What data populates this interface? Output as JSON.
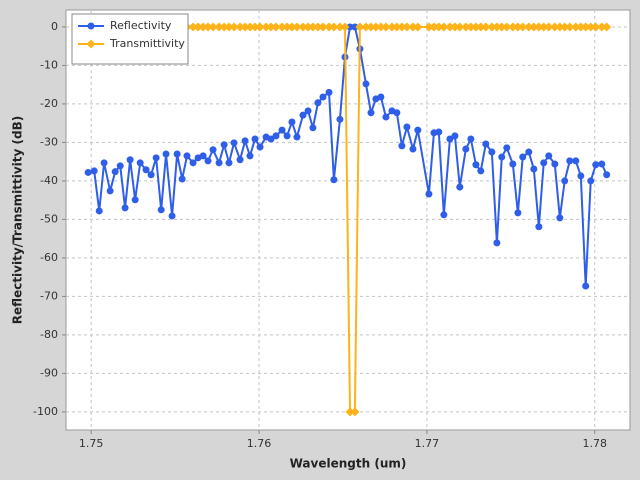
{
  "chart_data": {
    "type": "line",
    "xlabel": "Wavelength (um)",
    "ylabel": "Reflectivity/Transmittivity (dB)",
    "x": [
      1.74982,
      1.75018,
      1.75048,
      1.75077,
      1.75113,
      1.75143,
      1.75173,
      1.75202,
      1.75232,
      1.75262,
      1.75292,
      1.75327,
      1.75357,
      1.75387,
      1.75417,
      1.75446,
      1.75482,
      1.75512,
      1.75542,
      1.75571,
      1.75607,
      1.75637,
      1.75667,
      1.75696,
      1.75726,
      1.75762,
      1.75792,
      1.75821,
      1.75851,
      1.75887,
      1.75917,
      1.75946,
      1.75976,
      1.76006,
      1.76042,
      1.76071,
      1.76101,
      1.76137,
      1.76167,
      1.76196,
      1.76226,
      1.76262,
      1.76292,
      1.76321,
      1.76351,
      1.76381,
      1.76417,
      1.76446,
      1.76482,
      1.76512,
      1.76542,
      1.76571,
      1.76601,
      1.76637,
      1.76667,
      1.76696,
      1.76726,
      1.76756,
      1.76792,
      1.76821,
      1.76851,
      1.76881,
      1.76917,
      1.76946,
      1.77012,
      1.77042,
      1.77071,
      1.77101,
      1.77137,
      1.77167,
      1.77196,
      1.77232,
      1.77262,
      1.77292,
      1.77321,
      1.77351,
      1.77387,
      1.77417,
      1.77446,
      1.77476,
      1.77512,
      1.77542,
      1.77571,
      1.77607,
      1.77637,
      1.77667,
      1.77696,
      1.77726,
      1.77762,
      1.77792,
      1.77821,
      1.77851,
      1.77887,
      1.77917,
      1.77946,
      1.77976,
      1.78006,
      1.78042,
      1.78071
    ],
    "series": [
      {
        "name": "Reflectivity",
        "color": "#2f5ee8",
        "marker": "circle",
        "values": [
          -37.8,
          -37.4,
          -47.8,
          -35.3,
          -42.6,
          -37.6,
          -36.1,
          -47.0,
          -34.5,
          -44.9,
          -35.3,
          -37.1,
          -38.4,
          -34.0,
          -47.5,
          -33.0,
          -49.1,
          -33.0,
          -39.5,
          -33.5,
          -35.3,
          -34.0,
          -33.5,
          -34.8,
          -31.9,
          -35.3,
          -30.6,
          -35.3,
          -30.1,
          -34.5,
          -29.6,
          -33.5,
          -29.1,
          -31.2,
          -28.6,
          -29.1,
          -28.3,
          -26.8,
          -28.3,
          -24.7,
          -28.6,
          -22.9,
          -21.8,
          -26.2,
          -19.7,
          -18.2,
          -17.0,
          -39.7,
          -24.0,
          -7.8,
          0,
          0,
          -5.7,
          -14.8,
          -22.3,
          -18.7,
          -18.2,
          -23.4,
          -21.8,
          -22.3,
          -30.9,
          -26.0,
          -31.7,
          -26.8,
          -43.4,
          -27.5,
          -27.3,
          -48.8,
          -29.1,
          -28.3,
          -41.6,
          -31.7,
          -29.1,
          -35.8,
          -37.4,
          -30.4,
          -32.5,
          -56.1,
          -33.8,
          -31.4,
          -35.6,
          -48.3,
          -33.8,
          -32.5,
          -36.9,
          -51.9,
          -35.3,
          -33.5,
          -35.6,
          -49.6,
          -40.0,
          -34.8,
          -34.8,
          -38.7,
          -67.3,
          -40.0,
          -35.8,
          -35.6,
          -38.4
        ]
      },
      {
        "name": "Transmittivity",
        "color": "#ffb31a",
        "marker": "diamond",
        "values": [
          0,
          0,
          0,
          0,
          0,
          0,
          0,
          0,
          0,
          0,
          0,
          0,
          0,
          0,
          0,
          0,
          0,
          0,
          0,
          0,
          0,
          0,
          0,
          0,
          0,
          0,
          0,
          0,
          0,
          0,
          0,
          0,
          0,
          0,
          0,
          0,
          0,
          0,
          0,
          0,
          0,
          0,
          0,
          0,
          0,
          0,
          0,
          0,
          0,
          0,
          -100,
          -100,
          0,
          0,
          0,
          0,
          0,
          0,
          0,
          0,
          0,
          0,
          0,
          0,
          0,
          0,
          0,
          0,
          0,
          0,
          0,
          0,
          0,
          0,
          0,
          0,
          0,
          0,
          0,
          0,
          0,
          0,
          0,
          0,
          0,
          0,
          0,
          0,
          0,
          0,
          0,
          0,
          0,
          0,
          0,
          0,
          0,
          0,
          0
        ]
      }
    ],
    "xlim": [
      1.7485,
      1.7821
    ],
    "xticks": [
      1.75,
      1.76,
      1.77,
      1.78
    ],
    "ylim": [
      -104.7,
      4.4
    ],
    "yticks": [
      0,
      -10,
      -20,
      -30,
      -40,
      -50,
      -60,
      -70,
      -80,
      -90,
      -100
    ],
    "grid": true,
    "legend": "upper left"
  }
}
